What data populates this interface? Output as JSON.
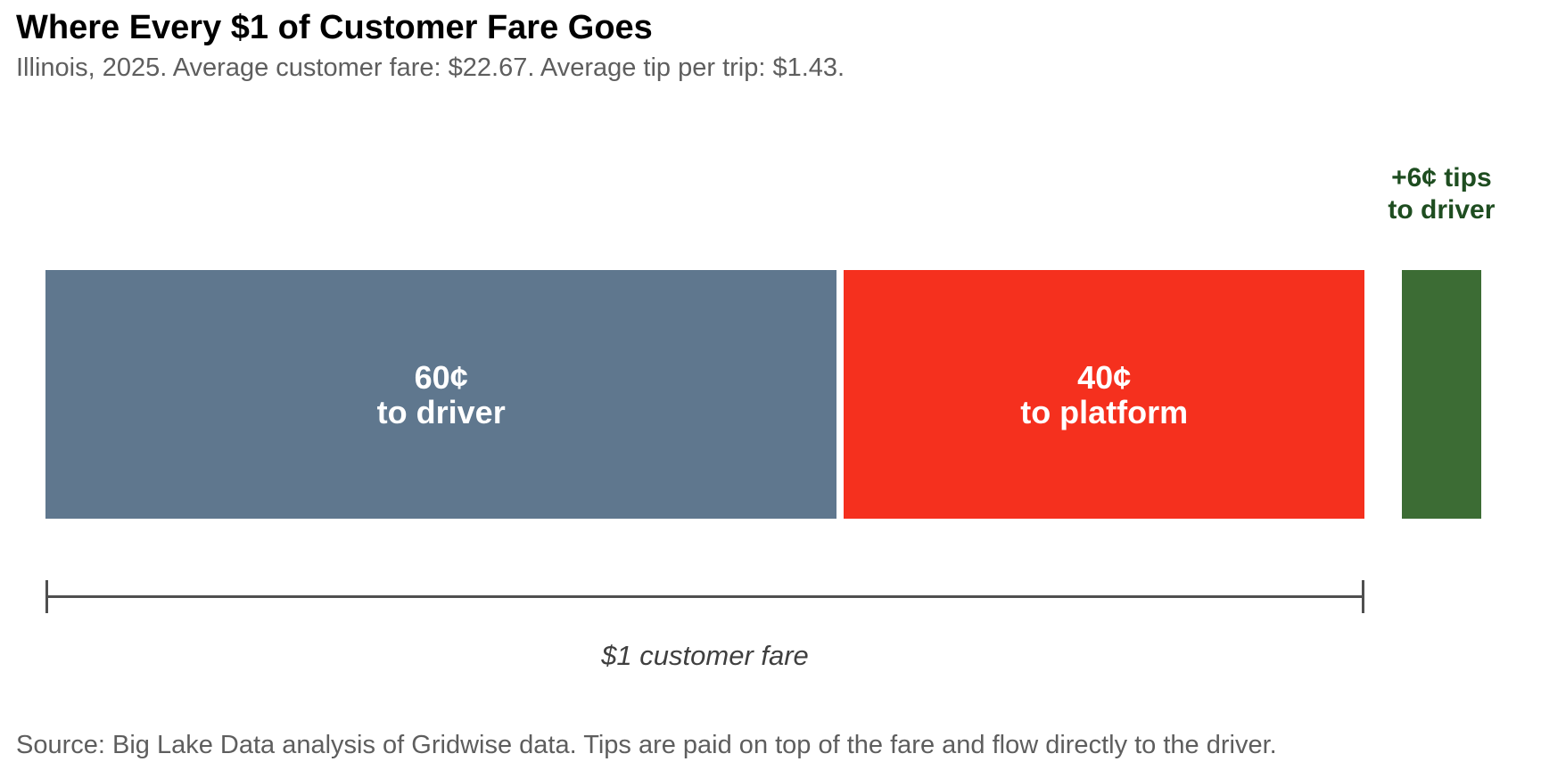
{
  "chart_data": {
    "type": "bar",
    "orientation": "horizontal-proportional",
    "title": "Where Every $1 of Customer Fare Goes",
    "subtitle": "Illinois, 2025. Average customer fare: $22.67. Average tip per trip: $1.43.",
    "unit": "cents per $1 of customer fare",
    "categories": [
      "to driver",
      "to platform",
      "tips to driver"
    ],
    "values": [
      60,
      40,
      6
    ],
    "series": [
      {
        "name": "to driver",
        "value": 60,
        "color": "#5f778e",
        "label_lines": [
          "60¢",
          "to driver"
        ],
        "label_color": "#ffffff"
      },
      {
        "name": "to platform",
        "value": 40,
        "color": "#f5301e",
        "label_lines": [
          "40¢",
          "to platform"
        ],
        "label_color": "#ffffff"
      },
      {
        "name": "tips to driver",
        "value": 6,
        "color": "#3c6c34",
        "label_lines": [
          "+6¢ tips",
          "to driver"
        ],
        "label_color": "#1e4d20"
      }
    ],
    "axis": {
      "label": "$1 customer fare",
      "range_note": "bracket spans the driver + platform segments only",
      "color": "#4f4f4f"
    },
    "legend": "none",
    "grid": "off"
  },
  "footer": {
    "source": "Source: Big Lake Data analysis of Gridwise data. Tips are paid on top of the fare and flow directly to the driver."
  }
}
